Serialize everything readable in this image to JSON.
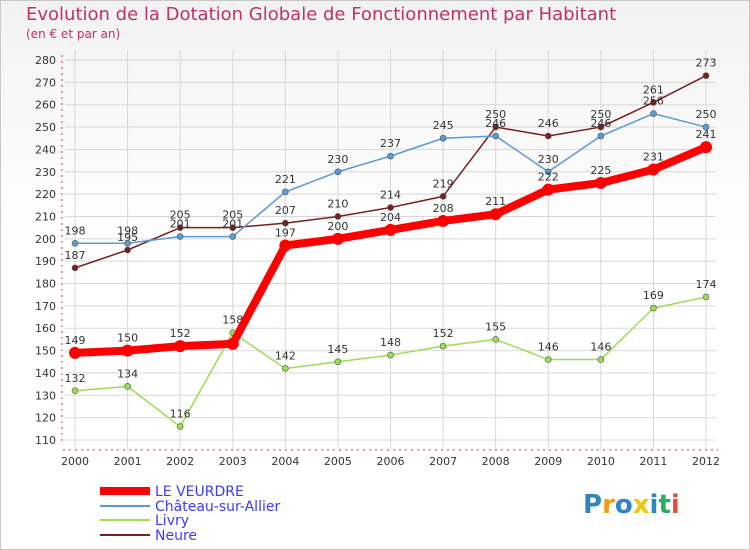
{
  "chart_data": {
    "type": "line",
    "title": "Evolution de la Dotation Globale de Fonctionnement par Habitant",
    "subtitle": "(en € et par an)",
    "categories": [
      "2000",
      "2001",
      "2002",
      "2003",
      "2004",
      "2005",
      "2006",
      "2007",
      "2008",
      "2009",
      "2010",
      "2011",
      "2012"
    ],
    "ylim": [
      110,
      280
    ],
    "yticks": [
      110,
      120,
      130,
      140,
      150,
      160,
      170,
      180,
      190,
      200,
      210,
      220,
      230,
      240,
      250,
      260,
      270,
      280
    ],
    "series": [
      {
        "name": "LE VEURDRE",
        "color": "#ff0000",
        "values": [
          149,
          150,
          152,
          153,
          197,
          200,
          204,
          208,
          211,
          222,
          225,
          231,
          241
        ],
        "labels": [
          "149",
          "150",
          "152",
          "",
          "197",
          "200",
          "204",
          "208",
          "211",
          "222",
          "225",
          "231",
          "241"
        ]
      },
      {
        "name": "Château-sur-Allier",
        "color": "#5b9bd5",
        "values": [
          198,
          198,
          201,
          201,
          221,
          230,
          237,
          245,
          246,
          230,
          246,
          256,
          250
        ],
        "labels": [
          "198",
          "198",
          "201",
          "201",
          "221",
          "230",
          "237",
          "245",
          "246",
          "230",
          "246",
          "256",
          "250"
        ]
      },
      {
        "name": "Livry",
        "color": "#99dd55",
        "values": [
          132,
          134,
          116,
          158,
          142,
          145,
          148,
          152,
          155,
          146,
          146,
          169,
          174
        ],
        "labels": [
          "132",
          "134",
          "116",
          "158",
          "142",
          "145",
          "148",
          "152",
          "155",
          "146",
          "146",
          "169",
          "174"
        ]
      },
      {
        "name": "Neure",
        "color": "#7a1f1f",
        "values": [
          187,
          195,
          205,
          205,
          207,
          210,
          214,
          219,
          250,
          246,
          250,
          261,
          273
        ],
        "labels": [
          "187",
          "195",
          "205",
          "205",
          "207",
          "210",
          "214",
          "219",
          "250",
          "246",
          "250",
          "261",
          "273"
        ]
      }
    ],
    "legend_position": "bottom-left"
  },
  "logo": {
    "letters": [
      "P",
      "r",
      "o",
      "x",
      "i",
      "t",
      "i"
    ],
    "colors": [
      "#2e86c1",
      "#f39c12",
      "#2e86c1",
      "#f1c40f",
      "#2e86c1",
      "#27ae60",
      "#e74c3c"
    ]
  }
}
